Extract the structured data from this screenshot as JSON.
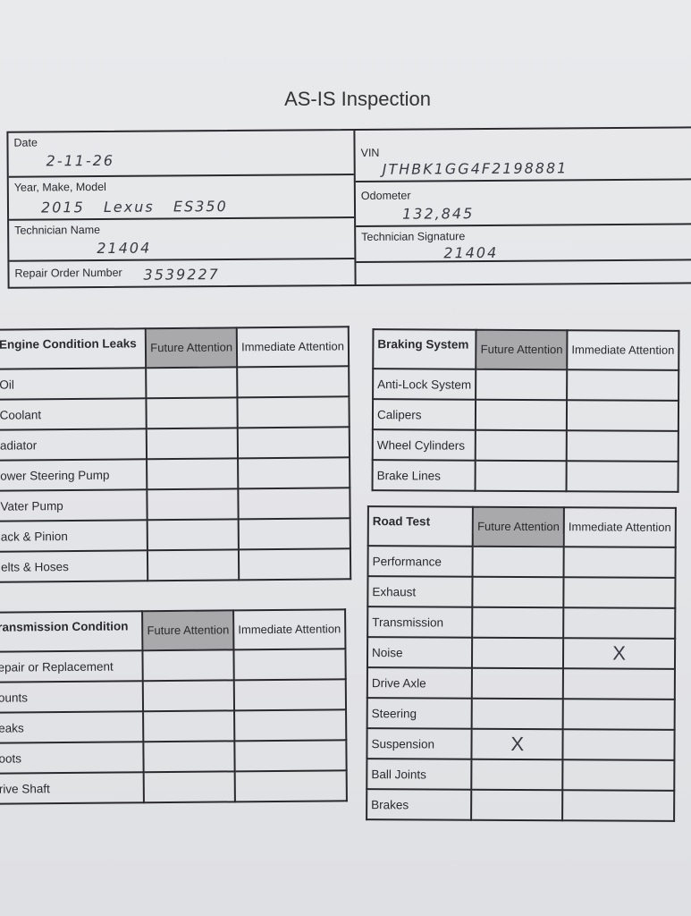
{
  "title": "AS-IS Inspection",
  "header": {
    "date": {
      "label": "Date",
      "value": "2-11-26"
    },
    "ymm": {
      "label": "Year, Make, Model",
      "value": "2015   Lexus   ES350"
    },
    "tech_name": {
      "label": "Technician Name",
      "value": "21404"
    },
    "ro": {
      "label": "Repair Order Number",
      "value": "3539227"
    },
    "vin": {
      "label": "VIN",
      "value": "JTHBK1GG4F2198881"
    },
    "odometer": {
      "label": "Odometer",
      "value": "132,845"
    },
    "tech_sig": {
      "label": "Technician Signature",
      "value": "21404"
    }
  },
  "columns": {
    "future": "Future Attention",
    "immediate": "Immediate Attention"
  },
  "engine": {
    "heading": "Engine Condition Leaks",
    "rows": [
      {
        "label": "Oil",
        "future": "",
        "immediate": ""
      },
      {
        "label": "Coolant",
        "future": "",
        "immediate": ""
      },
      {
        "label": "adiator",
        "future": "",
        "immediate": ""
      },
      {
        "label": "ower Steering Pump",
        "future": "",
        "immediate": ""
      },
      {
        "label": "Vater Pump",
        "future": "",
        "immediate": ""
      },
      {
        "label": "ack & Pinion",
        "future": "",
        "immediate": ""
      },
      {
        "label": "elts & Hoses",
        "future": "",
        "immediate": ""
      }
    ]
  },
  "transmission": {
    "heading": "ransmission Condition",
    "rows": [
      {
        "label": "epair or Replacement",
        "future": "",
        "immediate": ""
      },
      {
        "label": "ounts",
        "future": "",
        "immediate": ""
      },
      {
        "label": "eaks",
        "future": "",
        "immediate": ""
      },
      {
        "label": "oots",
        "future": "",
        "immediate": ""
      },
      {
        "label": "rive Shaft",
        "future": "",
        "immediate": ""
      }
    ]
  },
  "braking": {
    "heading": "Braking System",
    "rows": [
      {
        "label": "Anti-Lock System",
        "future": "",
        "immediate": ""
      },
      {
        "label": "Calipers",
        "future": "",
        "immediate": ""
      },
      {
        "label": "Wheel Cylinders",
        "future": "",
        "immediate": ""
      },
      {
        "label": "Brake Lines",
        "future": "",
        "immediate": ""
      }
    ]
  },
  "road": {
    "heading": "Road Test",
    "rows": [
      {
        "label": "Performance",
        "future": "",
        "immediate": ""
      },
      {
        "label": "Exhaust",
        "future": "",
        "immediate": ""
      },
      {
        "label": "Transmission",
        "future": "",
        "immediate": ""
      },
      {
        "label": "Noise",
        "future": "",
        "immediate": "X"
      },
      {
        "label": "Drive Axle",
        "future": "",
        "immediate": ""
      },
      {
        "label": "Steering",
        "future": "",
        "immediate": ""
      },
      {
        "label": "Suspension",
        "future": "X",
        "immediate": ""
      },
      {
        "label": "Ball Joints",
        "future": "",
        "immediate": ""
      },
      {
        "label": "Brakes",
        "future": "",
        "immediate": ""
      }
    ]
  }
}
